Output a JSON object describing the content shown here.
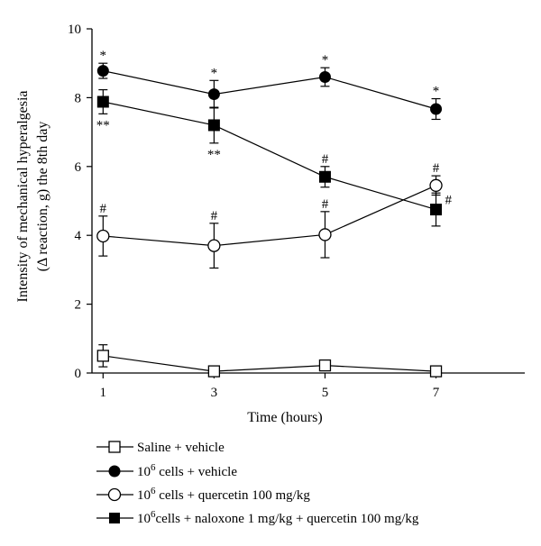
{
  "chart_data": {
    "type": "line",
    "title": "",
    "xlabel": "Time (hours)",
    "ylabel_line1": "Intensity of mechanical hyperalgesia",
    "ylabel_line2": "(Δ reaction, g) the 8th day",
    "xlim": [
      0.8,
      8.6
    ],
    "ylim": [
      0,
      10
    ],
    "xticks": [
      1,
      3,
      5,
      7
    ],
    "yticks": [
      0,
      2,
      4,
      6,
      8,
      10
    ],
    "grid": false,
    "legend_position": "bottom",
    "series": [
      {
        "name": "Saline + vehicle",
        "marker": "open-square",
        "x": [
          1,
          3,
          5,
          7
        ],
        "y": [
          0.5,
          0.05,
          0.22,
          0.05
        ],
        "err": [
          0.32,
          0.08,
          0.12,
          0.08
        ],
        "annotations": [
          [],
          [],
          [],
          []
        ]
      },
      {
        "name": "10⁶ cells + vehicle",
        "marker": "filled-circle",
        "x": [
          1,
          3,
          5,
          7
        ],
        "y": [
          8.78,
          8.1,
          8.6,
          7.67
        ],
        "err": [
          0.22,
          0.4,
          0.27,
          0.3
        ],
        "annotations": [
          [
            "*",
            "above"
          ],
          [
            "*",
            "above"
          ],
          [
            "*",
            "above"
          ],
          [
            "*",
            "above"
          ]
        ]
      },
      {
        "name": "10⁶ cells + quercetin 100 mg/kg",
        "marker": "open-circle",
        "x": [
          1,
          3,
          5,
          7
        ],
        "y": [
          3.98,
          3.7,
          4.02,
          5.45
        ],
        "err": [
          0.58,
          0.65,
          0.67,
          0.28
        ],
        "annotations": [
          [
            "#",
            "above"
          ],
          [
            "#",
            "above"
          ],
          [
            "#",
            "above"
          ],
          [
            "#",
            "above"
          ]
        ]
      },
      {
        "name": "10⁶cells + naloxone 1 mg/kg + quercetin 100 mg/kg",
        "marker": "filled-square",
        "x": [
          1,
          3,
          5,
          7
        ],
        "y": [
          7.88,
          7.2,
          5.7,
          4.75
        ],
        "err": [
          0.35,
          0.52,
          0.3,
          0.48
        ],
        "annotations": [
          [
            "**",
            "below"
          ],
          [
            "**",
            "below"
          ],
          [
            "#",
            "above"
          ],
          [
            "#",
            "right"
          ]
        ]
      }
    ]
  },
  "legend": {
    "item1": "Saline + vehicle",
    "item2_base": "10",
    "item2_sup": "6",
    "item2_rest": " cells + vehicle",
    "item3_base": "10",
    "item3_sup": "6",
    "item3_rest": " cells + quercetin 100 mg/kg",
    "item4_base": "10",
    "item4_sup": "6",
    "item4_rest": "cells + naloxone 1 mg/kg + quercetin 100 mg/kg"
  }
}
